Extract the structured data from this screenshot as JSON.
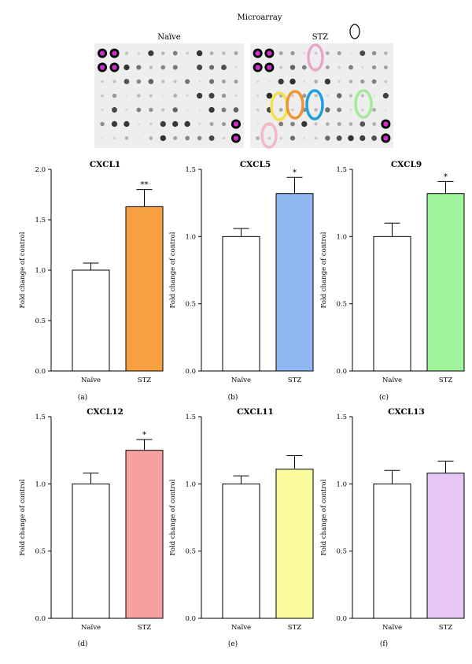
{
  "microarray": {
    "title": "Microarray",
    "panels": [
      {
        "label": "Naïve"
      },
      {
        "label": "STZ"
      }
    ]
  },
  "colors": {
    "naive_bar": "#ffffff",
    "cxcl1": "#f7a040",
    "cxcl5": "#8fb8f2",
    "cxcl9": "#a0f39a",
    "cxcl12": "#f6a0a0",
    "cxcl11": "#fafb9c",
    "cxcl13": "#e6c6f2",
    "magenta_spot": "#d02ad0",
    "circle_pink": "#e9a6c8",
    "circle_yellow": "#f2e24a",
    "circle_orange": "#f0922e",
    "circle_blue": "#1f9ee0",
    "circle_green": "#a3ea98",
    "circle_lightpink": "#f5b6c6"
  },
  "chart_data": [
    {
      "type": "bar",
      "panel_label": "(a)",
      "title": "CXCL1",
      "ylabel": "Fold change of control",
      "categories": [
        "Naïve",
        "STZ"
      ],
      "values": [
        1.0,
        1.63
      ],
      "errors": [
        0.07,
        0.17
      ],
      "ylim": [
        0,
        2.0
      ],
      "yticks": [
        "0.0",
        "0.5",
        "1.0",
        "1.5",
        "2.0"
      ],
      "significance": [
        "",
        "**"
      ],
      "fill_color": "#f7a040"
    },
    {
      "type": "bar",
      "panel_label": "(b)",
      "title": "CXCL5",
      "ylabel": "Fold change of control",
      "categories": [
        "Naïve",
        "STZ"
      ],
      "values": [
        1.0,
        1.32
      ],
      "errors": [
        0.06,
        0.12
      ],
      "ylim": [
        0,
        1.5
      ],
      "yticks": [
        "0.0",
        "0.5",
        "1.0",
        "1.5"
      ],
      "significance": [
        "",
        "*"
      ],
      "fill_color": "#8fb8f2"
    },
    {
      "type": "bar",
      "panel_label": "(c)",
      "title": "CXCL9",
      "ylabel": "Fold change of control",
      "categories": [
        "Naïve",
        "STZ"
      ],
      "values": [
        1.0,
        1.32
      ],
      "errors": [
        0.1,
        0.09
      ],
      "ylim": [
        0,
        1.5
      ],
      "yticks": [
        "0.0",
        "0.5",
        "1.0",
        "1.5"
      ],
      "significance": [
        "",
        "*"
      ],
      "fill_color": "#a0f39a"
    },
    {
      "type": "bar",
      "panel_label": "(d)",
      "title": "CXCL12",
      "ylabel": "Fold change of control",
      "categories": [
        "Naïve",
        "STZ"
      ],
      "values": [
        1.0,
        1.25
      ],
      "errors": [
        0.08,
        0.08
      ],
      "ylim": [
        0,
        1.5
      ],
      "yticks": [
        "0.0",
        "0.5",
        "1.0",
        "1.5"
      ],
      "significance": [
        "",
        "*"
      ],
      "fill_color": "#f6a0a0"
    },
    {
      "type": "bar",
      "panel_label": "(e)",
      "title": "CXCL11",
      "ylabel": "Fold change of control",
      "categories": [
        "Naïve",
        "STZ"
      ],
      "values": [
        1.0,
        1.11
      ],
      "errors": [
        0.06,
        0.1
      ],
      "ylim": [
        0,
        1.5
      ],
      "yticks": [
        "0.0",
        "0.5",
        "1.0",
        "1.5"
      ],
      "significance": [
        "",
        ""
      ],
      "fill_color": "#fafb9c"
    },
    {
      "type": "bar",
      "panel_label": "(f)",
      "title": "CXCL13",
      "ylabel": "Fold change of control",
      "categories": [
        "Naïve",
        "STZ"
      ],
      "values": [
        1.0,
        1.08
      ],
      "errors": [
        0.1,
        0.09
      ],
      "ylim": [
        0,
        1.5
      ],
      "yticks": [
        "0.0",
        "0.5",
        "1.0",
        "1.5"
      ],
      "significance": [
        "",
        ""
      ],
      "fill_color": "#e6c6f2"
    }
  ]
}
